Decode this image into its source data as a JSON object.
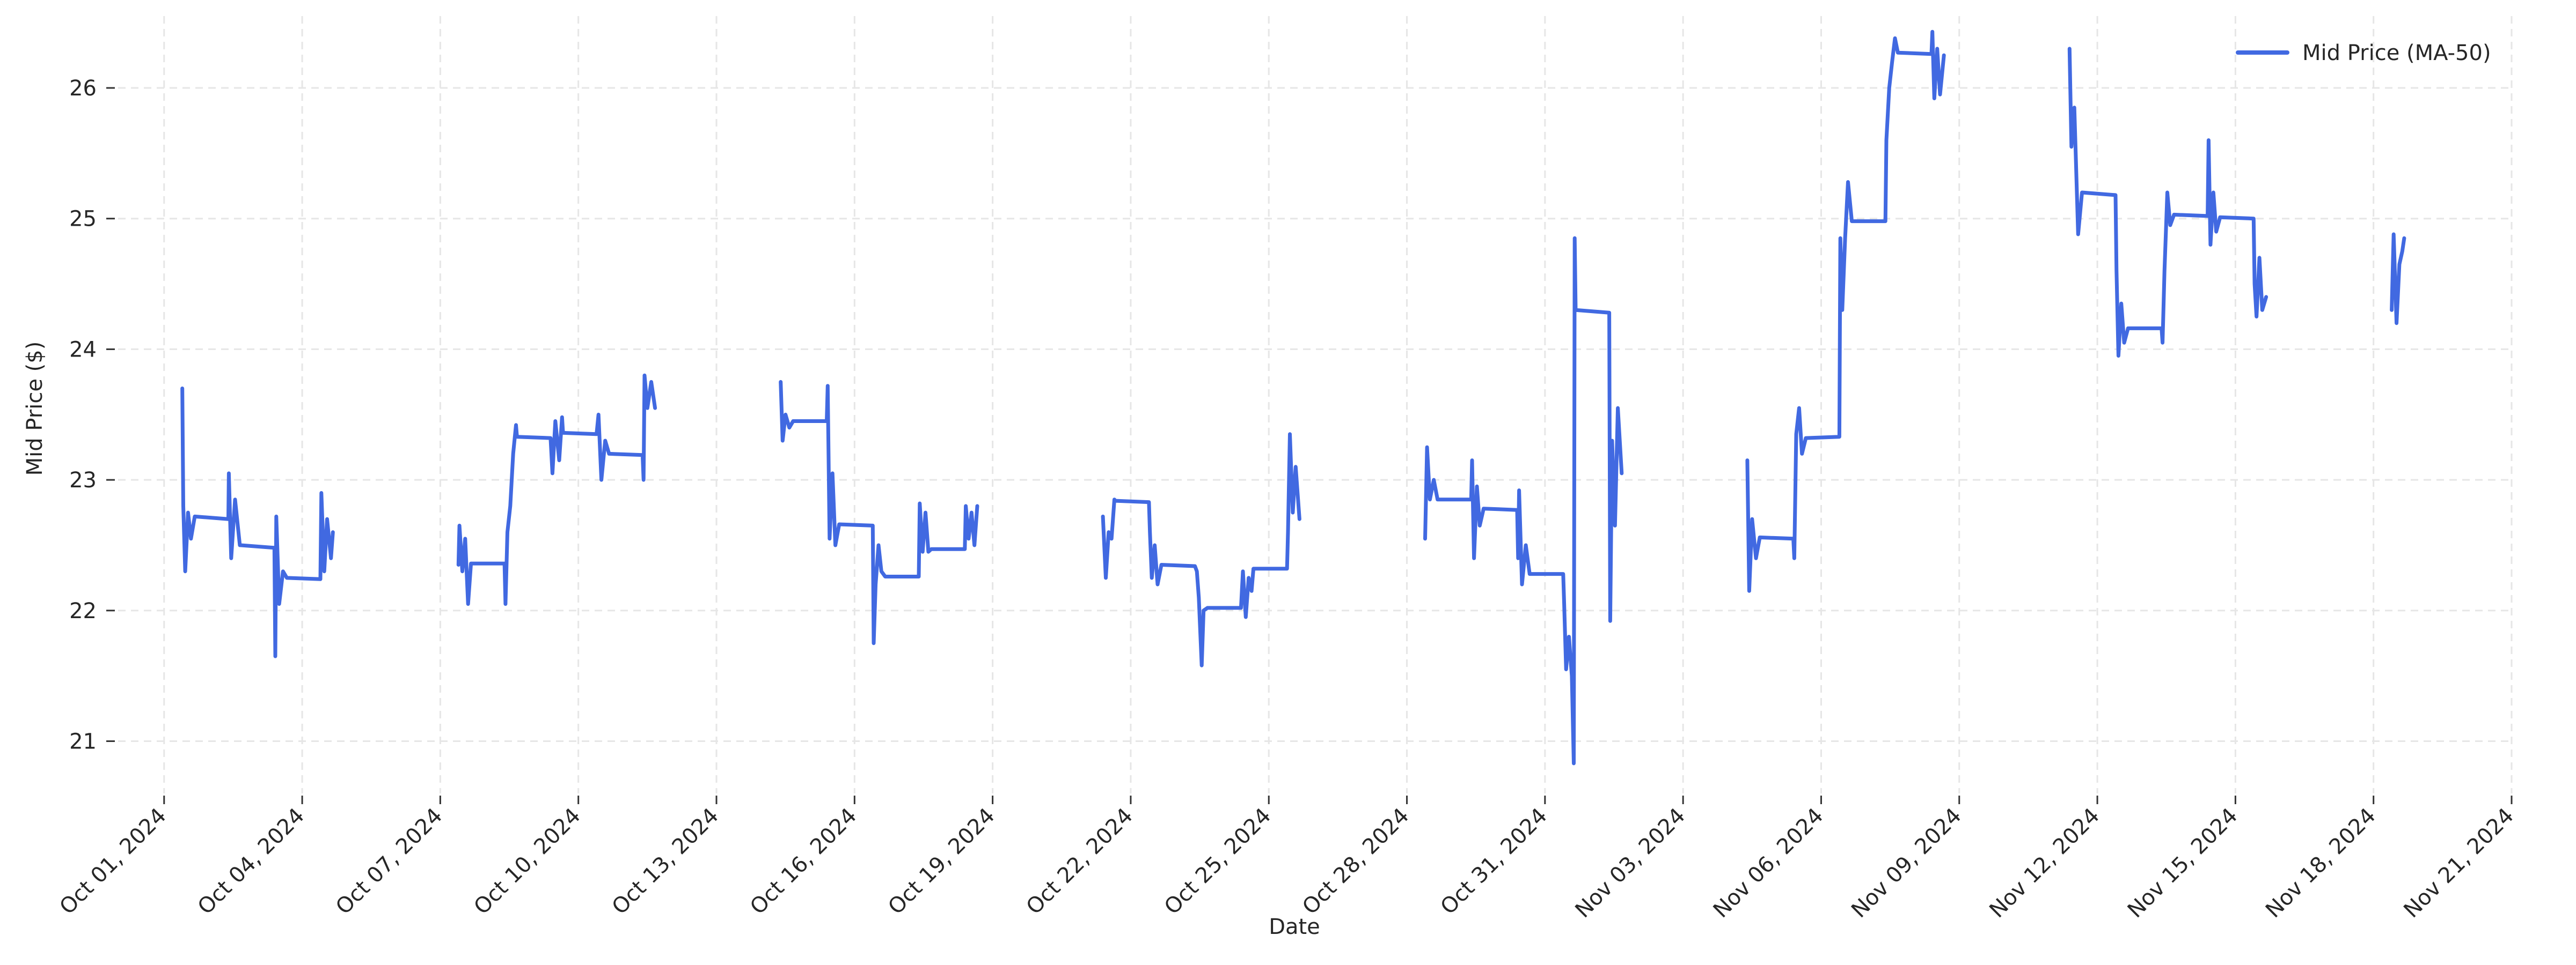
{
  "chart_data": {
    "type": "line",
    "title": "",
    "xlabel": "Date",
    "ylabel": "Mid Price ($)",
    "x_ticks": [
      "Oct 01, 2024",
      "Oct 04, 2024",
      "Oct 07, 2024",
      "Oct 10, 2024",
      "Oct 13, 2024",
      "Oct 16, 2024",
      "Oct 19, 2024",
      "Oct 22, 2024",
      "Oct 25, 2024",
      "Oct 28, 2024",
      "Oct 31, 2024",
      "Nov 03, 2024",
      "Nov 06, 2024",
      "Nov 09, 2024",
      "Nov 12, 2024",
      "Nov 15, 2024",
      "Nov 18, 2024",
      "Nov 21, 2024"
    ],
    "y_ticks": [
      21,
      22,
      23,
      24,
      25,
      26
    ],
    "xlim": [
      "2024-09-30T00:00",
      "2024-11-21T00:00"
    ],
    "ylim": [
      20.6,
      26.55
    ],
    "grid": true,
    "legend_position": "top-right",
    "series": [
      {
        "name": "Mid Price (MA-50)",
        "color": "#4169e1",
        "segments": [
          [
            [
              "2024-10-01T09:30",
              23.7
            ],
            [
              "2024-10-01T10:00",
              22.8
            ],
            [
              "2024-10-01T11:00",
              22.3
            ],
            [
              "2024-10-01T12:30",
              22.75
            ],
            [
              "2024-10-01T14:00",
              22.55
            ],
            [
              "2024-10-01T16:00",
              22.72
            ],
            [
              "2024-10-02T09:30",
              22.7
            ],
            [
              "2024-10-02T09:45",
              23.05
            ],
            [
              "2024-10-02T11:00",
              22.4
            ],
            [
              "2024-10-02T13:00",
              22.85
            ],
            [
              "2024-10-02T15:30",
              22.5
            ],
            [
              "2024-10-02T16:00",
              22.5
            ],
            [
              "2024-10-03T09:30",
              22.48
            ],
            [
              "2024-10-03T10:00",
              21.65
            ],
            [
              "2024-10-03T10:30",
              22.72
            ],
            [
              "2024-10-03T12:00",
              22.05
            ],
            [
              "2024-10-03T14:00",
              22.3
            ],
            [
              "2024-10-03T16:00",
              22.25
            ],
            [
              "2024-10-04T09:30",
              22.24
            ],
            [
              "2024-10-04T10:00",
              22.9
            ],
            [
              "2024-10-04T11:30",
              22.3
            ],
            [
              "2024-10-04T13:00",
              22.7
            ],
            [
              "2024-10-04T15:00",
              22.4
            ],
            [
              "2024-10-04T16:00",
              22.6
            ]
          ],
          [
            [
              "2024-10-07T09:30",
              22.35
            ],
            [
              "2024-10-07T10:00",
              22.65
            ],
            [
              "2024-10-07T11:30",
              22.3
            ],
            [
              "2024-10-07T13:00",
              22.55
            ],
            [
              "2024-10-07T14:30",
              22.05
            ],
            [
              "2024-10-07T16:00",
              22.36
            ],
            [
              "2024-10-08T09:30",
              22.36
            ],
            [
              "2024-10-08T10:00",
              22.05
            ],
            [
              "2024-10-08T11:00",
              22.6
            ],
            [
              "2024-10-08T12:30",
              22.8
            ],
            [
              "2024-10-08T14:00",
              23.2
            ],
            [
              "2024-10-08T15:30",
              23.42
            ],
            [
              "2024-10-08T16:00",
              23.33
            ],
            [
              "2024-10-09T09:30",
              23.32
            ],
            [
              "2024-10-09T10:30",
              23.05
            ],
            [
              "2024-10-09T12:00",
              23.45
            ],
            [
              "2024-10-09T14:00",
              23.15
            ],
            [
              "2024-10-09T15:30",
              23.48
            ],
            [
              "2024-10-09T16:00",
              23.36
            ],
            [
              "2024-10-10T09:30",
              23.35
            ],
            [
              "2024-10-10T10:30",
              23.5
            ],
            [
              "2024-10-10T12:00",
              23.0
            ],
            [
              "2024-10-10T14:00",
              23.3
            ],
            [
              "2024-10-10T16:00",
              23.2
            ],
            [
              "2024-10-11T09:30",
              23.19
            ],
            [
              "2024-10-11T10:00",
              23.0
            ],
            [
              "2024-10-11T10:30",
              23.8
            ],
            [
              "2024-10-11T12:00",
              23.55
            ],
            [
              "2024-10-11T14:00",
              23.75
            ],
            [
              "2024-10-11T16:00",
              23.55
            ]
          ],
          [
            [
              "2024-10-14T09:30",
              23.75
            ],
            [
              "2024-10-14T10:30",
              23.3
            ],
            [
              "2024-10-14T12:00",
              23.5
            ],
            [
              "2024-10-14T14:00",
              23.4
            ],
            [
              "2024-10-14T16:00",
              23.45
            ],
            [
              "2024-10-15T09:30",
              23.45
            ],
            [
              "2024-10-15T10:00",
              23.72
            ],
            [
              "2024-10-15T11:00",
              22.55
            ],
            [
              "2024-10-15T12:30",
              23.05
            ],
            [
              "2024-10-15T14:00",
              22.5
            ],
            [
              "2024-10-15T16:00",
              22.66
            ],
            [
              "2024-10-16T09:30",
              22.65
            ],
            [
              "2024-10-16T10:00",
              21.75
            ],
            [
              "2024-10-16T11:00",
              22.2
            ],
            [
              "2024-10-16T12:30",
              22.5
            ],
            [
              "2024-10-16T14:00",
              22.3
            ],
            [
              "2024-10-16T16:00",
              22.26
            ],
            [
              "2024-10-17T09:30",
              22.26
            ],
            [
              "2024-10-17T10:00",
              22.82
            ],
            [
              "2024-10-17T11:30",
              22.45
            ],
            [
              "2024-10-17T13:00",
              22.75
            ],
            [
              "2024-10-17T14:30",
              22.45
            ],
            [
              "2024-10-17T16:00",
              22.47
            ],
            [
              "2024-10-18T09:30",
              22.47
            ],
            [
              "2024-10-18T10:00",
              22.8
            ],
            [
              "2024-10-18T11:30",
              22.55
            ],
            [
              "2024-10-18T13:00",
              22.75
            ],
            [
              "2024-10-18T14:30",
              22.5
            ],
            [
              "2024-10-18T16:00",
              22.8
            ]
          ],
          [
            [
              "2024-10-21T09:30",
              22.72
            ],
            [
              "2024-10-21T11:00",
              22.25
            ],
            [
              "2024-10-21T12:30",
              22.6
            ],
            [
              "2024-10-21T14:00",
              22.55
            ],
            [
              "2024-10-21T15:30",
              22.85
            ],
            [
              "2024-10-21T16:00",
              22.84
            ],
            [
              "2024-10-22T09:30",
              22.83
            ],
            [
              "2024-10-22T10:00",
              22.6
            ],
            [
              "2024-10-22T11:00",
              22.25
            ],
            [
              "2024-10-22T12:30",
              22.5
            ],
            [
              "2024-10-22T14:00",
              22.2
            ],
            [
              "2024-10-22T16:00",
              22.35
            ],
            [
              "2024-10-23T09:30",
              22.34
            ],
            [
              "2024-10-23T10:30",
              22.3
            ],
            [
              "2024-10-23T11:30",
              22.1
            ],
            [
              "2024-10-23T13:00",
              21.58
            ],
            [
              "2024-10-23T14:00",
              22.0
            ],
            [
              "2024-10-23T16:00",
              22.02
            ],
            [
              "2024-10-24T09:30",
              22.02
            ],
            [
              "2024-10-24T10:30",
              22.3
            ],
            [
              "2024-10-24T12:00",
              21.95
            ],
            [
              "2024-10-24T13:30",
              22.25
            ],
            [
              "2024-10-24T15:00",
              22.15
            ],
            [
              "2024-10-24T16:00",
              22.32
            ],
            [
              "2024-10-25T09:30",
              22.32
            ],
            [
              "2024-10-25T10:00",
              22.6
            ],
            [
              "2024-10-25T11:00",
              23.35
            ],
            [
              "2024-10-25T12:30",
              22.75
            ],
            [
              "2024-10-25T14:00",
              23.1
            ],
            [
              "2024-10-25T16:00",
              22.7
            ]
          ],
          [
            [
              "2024-10-28T09:30",
              22.55
            ],
            [
              "2024-10-28T10:30",
              23.25
            ],
            [
              "2024-10-28T12:00",
              22.85
            ],
            [
              "2024-10-28T14:00",
              23.0
            ],
            [
              "2024-10-28T16:00",
              22.85
            ],
            [
              "2024-10-29T09:30",
              22.85
            ],
            [
              "2024-10-29T10:00",
              23.15
            ],
            [
              "2024-10-29T11:00",
              22.4
            ],
            [
              "2024-10-29T12:30",
              22.95
            ],
            [
              "2024-10-29T14:00",
              22.65
            ],
            [
              "2024-10-29T16:00",
              22.78
            ],
            [
              "2024-10-30T09:30",
              22.77
            ],
            [
              "2024-10-30T10:00",
              22.4
            ],
            [
              "2024-10-30T10:30",
              22.92
            ],
            [
              "2024-10-30T12:00",
              22.2
            ],
            [
              "2024-10-30T14:00",
              22.5
            ],
            [
              "2024-10-30T16:00",
              22.28
            ],
            [
              "2024-10-31T09:30",
              22.28
            ],
            [
              "2024-10-31T10:00",
              22.05
            ],
            [
              "2024-10-31T11:00",
              21.55
            ],
            [
              "2024-10-31T12:30",
              21.8
            ],
            [
              "2024-10-31T14:00",
              21.5
            ],
            [
              "2024-10-31T15:00",
              20.83
            ],
            [
              "2024-10-31T15:30",
              24.85
            ],
            [
              "2024-10-31T16:00",
              24.3
            ],
            [
              "2024-11-01T09:30",
              24.28
            ],
            [
              "2024-11-01T10:00",
              21.92
            ],
            [
              "2024-11-01T11:00",
              23.3
            ],
            [
              "2024-11-01T12:30",
              22.65
            ],
            [
              "2024-11-01T14:00",
              23.55
            ],
            [
              "2024-11-01T16:00",
              23.05
            ]
          ],
          [
            [
              "2024-11-04T09:30",
              23.15
            ],
            [
              "2024-11-04T10:30",
              22.15
            ],
            [
              "2024-11-04T12:00",
              22.7
            ],
            [
              "2024-11-04T14:00",
              22.4
            ],
            [
              "2024-11-04T16:00",
              22.56
            ],
            [
              "2024-11-05T09:30",
              22.55
            ],
            [
              "2024-11-05T10:00",
              22.4
            ],
            [
              "2024-11-05T11:00",
              23.35
            ],
            [
              "2024-11-05T12:30",
              23.55
            ],
            [
              "2024-11-05T14:00",
              23.2
            ],
            [
              "2024-11-05T16:00",
              23.32
            ],
            [
              "2024-11-06T09:30",
              23.33
            ],
            [
              "2024-11-06T10:00",
              24.85
            ],
            [
              "2024-11-06T11:00",
              24.3
            ],
            [
              "2024-11-06T12:30",
              24.85
            ],
            [
              "2024-11-06T14:00",
              25.28
            ],
            [
              "2024-11-06T16:00",
              24.98
            ],
            [
              "2024-11-07T09:30",
              24.98
            ],
            [
              "2024-11-07T10:00",
              25.6
            ],
            [
              "2024-11-07T11:30",
              26.0
            ],
            [
              "2024-11-07T13:00",
              26.2
            ],
            [
              "2024-11-07T14:30",
              26.38
            ],
            [
              "2024-11-07T16:00",
              26.27
            ],
            [
              "2024-11-08T09:30",
              26.26
            ],
            [
              "2024-11-08T10:00",
              26.43
            ],
            [
              "2024-11-08T11:00",
              25.92
            ],
            [
              "2024-11-08T12:30",
              26.3
            ],
            [
              "2024-11-08T14:00",
              25.95
            ],
            [
              "2024-11-08T16:00",
              26.25
            ]
          ],
          [
            [
              "2024-11-11T09:30",
              26.3
            ],
            [
              "2024-11-11T10:30",
              25.55
            ],
            [
              "2024-11-11T12:00",
              25.85
            ],
            [
              "2024-11-11T14:00",
              24.88
            ],
            [
              "2024-11-11T16:00",
              25.2
            ],
            [
              "2024-11-12T09:30",
              25.18
            ],
            [
              "2024-11-12T10:00",
              24.6
            ],
            [
              "2024-11-12T11:00",
              23.95
            ],
            [
              "2024-11-12T12:30",
              24.35
            ],
            [
              "2024-11-12T14:00",
              24.05
            ],
            [
              "2024-11-12T16:00",
              24.16
            ],
            [
              "2024-11-13T09:30",
              24.16
            ],
            [
              "2024-11-13T10:00",
              24.05
            ],
            [
              "2024-11-13T11:00",
              24.6
            ],
            [
              "2024-11-13T12:30",
              25.2
            ],
            [
              "2024-11-13T14:00",
              24.95
            ],
            [
              "2024-11-13T16:00",
              25.03
            ],
            [
              "2024-11-14T09:30",
              25.02
            ],
            [
              "2024-11-14T10:00",
              25.6
            ],
            [
              "2024-11-14T11:00",
              24.8
            ],
            [
              "2024-11-14T12:30",
              25.2
            ],
            [
              "2024-11-14T14:00",
              24.9
            ],
            [
              "2024-11-14T16:00",
              25.01
            ],
            [
              "2024-11-15T09:30",
              25.0
            ],
            [
              "2024-11-15T10:00",
              24.5
            ],
            [
              "2024-11-15T11:00",
              24.25
            ],
            [
              "2024-11-15T12:30",
              24.7
            ],
            [
              "2024-11-15T14:00",
              24.3
            ],
            [
              "2024-11-15T16:00",
              24.4
            ]
          ],
          [
            [
              "2024-11-18T09:30",
              24.3
            ],
            [
              "2024-11-18T10:30",
              24.88
            ],
            [
              "2024-11-18T12:00",
              24.2
            ],
            [
              "2024-11-18T13:30",
              24.65
            ],
            [
              "2024-11-18T15:00",
              24.75
            ],
            [
              "2024-11-18T16:00",
              24.85
            ]
          ]
        ]
      }
    ]
  }
}
